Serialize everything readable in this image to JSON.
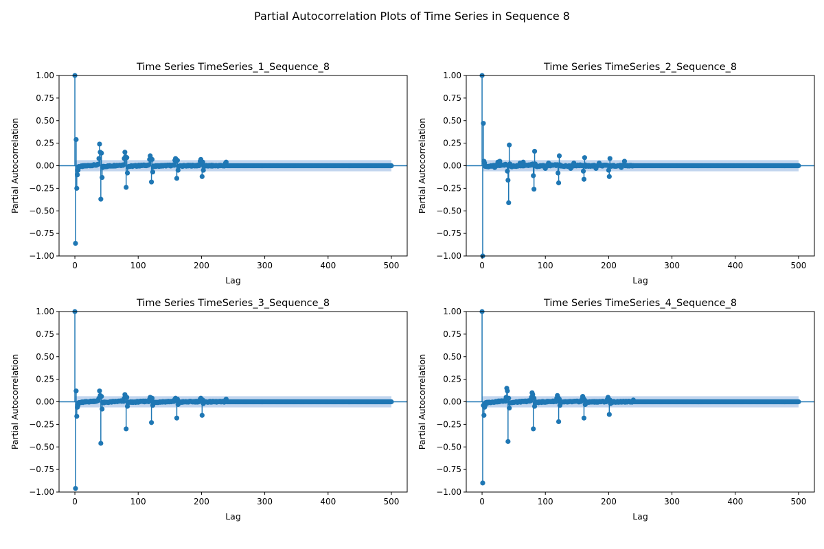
{
  "figure": {
    "suptitle": "Partial Autocorrelation Plots of Time Series in Sequence 8"
  },
  "colors": {
    "stem": "#1f77b4",
    "band": "#aec7e8",
    "axis": "#000000"
  },
  "chart_data": [
    {
      "type": "stem",
      "title": "Time Series TimeSeries_1_Sequence_8",
      "xlabel": "Lag",
      "ylabel": "Partial Autocorrelation",
      "xlim": [
        -25,
        525
      ],
      "ylim": [
        -1.0,
        1.0
      ],
      "xticks": [
        0,
        100,
        200,
        300,
        400,
        500
      ],
      "yticks": [
        -1.0,
        -0.75,
        -0.5,
        -0.25,
        0.0,
        0.25,
        0.5,
        0.75,
        1.0
      ],
      "xtick_labels": [
        "0",
        "100",
        "200",
        "300",
        "400",
        "500"
      ],
      "ytick_labels": [
        "−1.00",
        "−0.75",
        "−0.50",
        "−0.25",
        "0.00",
        "0.25",
        "0.50",
        "0.75",
        "1.00"
      ],
      "confidence_band": 0.062,
      "max_lag": 500,
      "tail_start_lag": 240,
      "notable_points": [
        [
          0,
          1.0
        ],
        [
          1,
          -0.86
        ],
        [
          2,
          0.29
        ],
        [
          3,
          -0.25
        ],
        [
          4,
          -0.1
        ],
        [
          5,
          -0.05
        ],
        [
          38,
          0.08
        ],
        [
          39,
          0.24
        ],
        [
          40,
          0.15
        ],
        [
          41,
          -0.37
        ],
        [
          42,
          0.14
        ],
        [
          43,
          -0.13
        ],
        [
          44,
          -0.02
        ],
        [
          78,
          0.08
        ],
        [
          79,
          0.15
        ],
        [
          80,
          0.1
        ],
        [
          81,
          -0.24
        ],
        [
          82,
          0.09
        ],
        [
          83,
          -0.08
        ],
        [
          118,
          0.07
        ],
        [
          119,
          0.11
        ],
        [
          120,
          0.08
        ],
        [
          121,
          -0.18
        ],
        [
          122,
          0.07
        ],
        [
          123,
          -0.07
        ],
        [
          158,
          0.06
        ],
        [
          159,
          0.08
        ],
        [
          160,
          0.05
        ],
        [
          161,
          -0.14
        ],
        [
          162,
          0.06
        ],
        [
          163,
          -0.05
        ],
        [
          198,
          0.05
        ],
        [
          199,
          0.07
        ],
        [
          200,
          0.03
        ],
        [
          201,
          -0.12
        ],
        [
          202,
          0.04
        ],
        [
          203,
          -0.05
        ],
        [
          238,
          0.03
        ],
        [
          239,
          0.04
        ]
      ]
    },
    {
      "type": "stem",
      "title": "Time Series TimeSeries_2_Sequence_8",
      "xlabel": "Lag",
      "ylabel": "Partial Autocorrelation",
      "xlim": [
        -25,
        525
      ],
      "ylim": [
        -1.0,
        1.0
      ],
      "xticks": [
        0,
        100,
        200,
        300,
        400,
        500
      ],
      "yticks": [
        -1.0,
        -0.75,
        -0.5,
        -0.25,
        0.0,
        0.25,
        0.5,
        0.75,
        1.0
      ],
      "xtick_labels": [
        "0",
        "100",
        "200",
        "300",
        "400",
        "500"
      ],
      "ytick_labels": [
        "−1.00",
        "−0.75",
        "−0.50",
        "−0.25",
        "0.00",
        "0.25",
        "0.50",
        "0.75",
        "1.00"
      ],
      "confidence_band": 0.062,
      "max_lag": 500,
      "tail_start_lag": 240,
      "notable_points": [
        [
          0,
          1.0
        ],
        [
          1,
          -1.0
        ],
        [
          2,
          0.47
        ],
        [
          3,
          0.05
        ],
        [
          4,
          0.03
        ],
        [
          20,
          -0.02
        ],
        [
          25,
          0.04
        ],
        [
          28,
          0.05
        ],
        [
          40,
          -0.06
        ],
        [
          41,
          -0.16
        ],
        [
          42,
          -0.41
        ],
        [
          43,
          0.23
        ],
        [
          44,
          0.02
        ],
        [
          60,
          0.03
        ],
        [
          65,
          0.04
        ],
        [
          80,
          0.02
        ],
        [
          81,
          -0.11
        ],
        [
          82,
          -0.26
        ],
        [
          83,
          0.16
        ],
        [
          84,
          0.02
        ],
        [
          100,
          -0.03
        ],
        [
          105,
          0.03
        ],
        [
          120,
          -0.08
        ],
        [
          121,
          -0.19
        ],
        [
          122,
          0.11
        ],
        [
          123,
          0.01
        ],
        [
          140,
          -0.03
        ],
        [
          145,
          0.03
        ],
        [
          160,
          -0.06
        ],
        [
          161,
          -0.15
        ],
        [
          162,
          0.09
        ],
        [
          163,
          0.01
        ],
        [
          180,
          -0.03
        ],
        [
          185,
          0.03
        ],
        [
          200,
          -0.05
        ],
        [
          201,
          -0.12
        ],
        [
          202,
          0.08
        ],
        [
          203,
          0.0
        ],
        [
          220,
          -0.02
        ],
        [
          225,
          0.05
        ]
      ]
    },
    {
      "type": "stem",
      "title": "Time Series TimeSeries_3_Sequence_8",
      "xlabel": "Lag",
      "ylabel": "Partial Autocorrelation",
      "xlim": [
        -25,
        525
      ],
      "ylim": [
        -1.0,
        1.0
      ],
      "xticks": [
        0,
        100,
        200,
        300,
        400,
        500
      ],
      "yticks": [
        -1.0,
        -0.75,
        -0.5,
        -0.25,
        0.0,
        0.25,
        0.5,
        0.75,
        1.0
      ],
      "xtick_labels": [
        "0",
        "100",
        "200",
        "300",
        "400",
        "500"
      ],
      "ytick_labels": [
        "−1.00",
        "−0.75",
        "−0.50",
        "−0.25",
        "0.00",
        "0.25",
        "0.50",
        "0.75",
        "1.00"
      ],
      "confidence_band": 0.062,
      "max_lag": 500,
      "tail_start_lag": 240,
      "notable_points": [
        [
          0,
          1.0
        ],
        [
          1,
          -0.96
        ],
        [
          2,
          0.12
        ],
        [
          3,
          -0.16
        ],
        [
          4,
          -0.06
        ],
        [
          5,
          -0.04
        ],
        [
          38,
          0.04
        ],
        [
          39,
          0.12
        ],
        [
          40,
          0.07
        ],
        [
          41,
          -0.46
        ],
        [
          42,
          0.06
        ],
        [
          43,
          -0.08
        ],
        [
          78,
          0.04
        ],
        [
          79,
          0.08
        ],
        [
          80,
          0.06
        ],
        [
          81,
          -0.3
        ],
        [
          82,
          0.05
        ],
        [
          83,
          -0.05
        ],
        [
          118,
          0.03
        ],
        [
          119,
          0.05
        ],
        [
          120,
          0.04
        ],
        [
          121,
          -0.23
        ],
        [
          122,
          0.04
        ],
        [
          123,
          -0.04
        ],
        [
          158,
          0.03
        ],
        [
          159,
          0.04
        ],
        [
          160,
          0.03
        ],
        [
          161,
          -0.18
        ],
        [
          162,
          0.03
        ],
        [
          163,
          -0.03
        ],
        [
          198,
          0.03
        ],
        [
          199,
          0.04
        ],
        [
          200,
          0.02
        ],
        [
          201,
          -0.15
        ],
        [
          202,
          0.02
        ],
        [
          203,
          -0.02
        ],
        [
          238,
          0.02
        ],
        [
          239,
          0.03
        ]
      ]
    },
    {
      "type": "stem",
      "title": "Time Series TimeSeries_4_Sequence_8",
      "xlabel": "Lag",
      "ylabel": "Partial Autocorrelation",
      "xlim": [
        -25,
        525
      ],
      "ylim": [
        -1.0,
        1.0
      ],
      "xticks": [
        0,
        100,
        200,
        300,
        400,
        500
      ],
      "yticks": [
        -1.0,
        -0.75,
        -0.5,
        -0.25,
        0.0,
        0.25,
        0.5,
        0.75,
        1.0
      ],
      "xtick_labels": [
        "0",
        "100",
        "200",
        "300",
        "400",
        "500"
      ],
      "ytick_labels": [
        "−1.00",
        "−0.75",
        "−0.50",
        "−0.25",
        "0.00",
        "0.25",
        "0.50",
        "0.75",
        "1.00"
      ],
      "confidence_band": 0.062,
      "max_lag": 500,
      "tail_start_lag": 240,
      "notable_points": [
        [
          0,
          1.0
        ],
        [
          1,
          -0.9
        ],
        [
          2,
          -0.04
        ],
        [
          3,
          -0.15
        ],
        [
          4,
          -0.06
        ],
        [
          5,
          -0.04
        ],
        [
          38,
          0.05
        ],
        [
          39,
          0.15
        ],
        [
          40,
          0.12
        ],
        [
          41,
          -0.44
        ],
        [
          42,
          0.04
        ],
        [
          43,
          -0.07
        ],
        [
          78,
          0.05
        ],
        [
          79,
          0.1
        ],
        [
          80,
          0.08
        ],
        [
          81,
          -0.3
        ],
        [
          82,
          0.04
        ],
        [
          83,
          -0.05
        ],
        [
          118,
          0.04
        ],
        [
          119,
          0.07
        ],
        [
          120,
          0.05
        ],
        [
          121,
          -0.22
        ],
        [
          122,
          0.03
        ],
        [
          123,
          -0.04
        ],
        [
          158,
          0.03
        ],
        [
          159,
          0.06
        ],
        [
          160,
          0.04
        ],
        [
          161,
          -0.18
        ],
        [
          162,
          0.02
        ],
        [
          163,
          -0.03
        ],
        [
          198,
          0.03
        ],
        [
          199,
          0.05
        ],
        [
          200,
          0.03
        ],
        [
          201,
          -0.14
        ],
        [
          202,
          0.02
        ],
        [
          203,
          -0.02
        ],
        [
          238,
          0.01
        ],
        [
          239,
          0.02
        ]
      ]
    }
  ]
}
